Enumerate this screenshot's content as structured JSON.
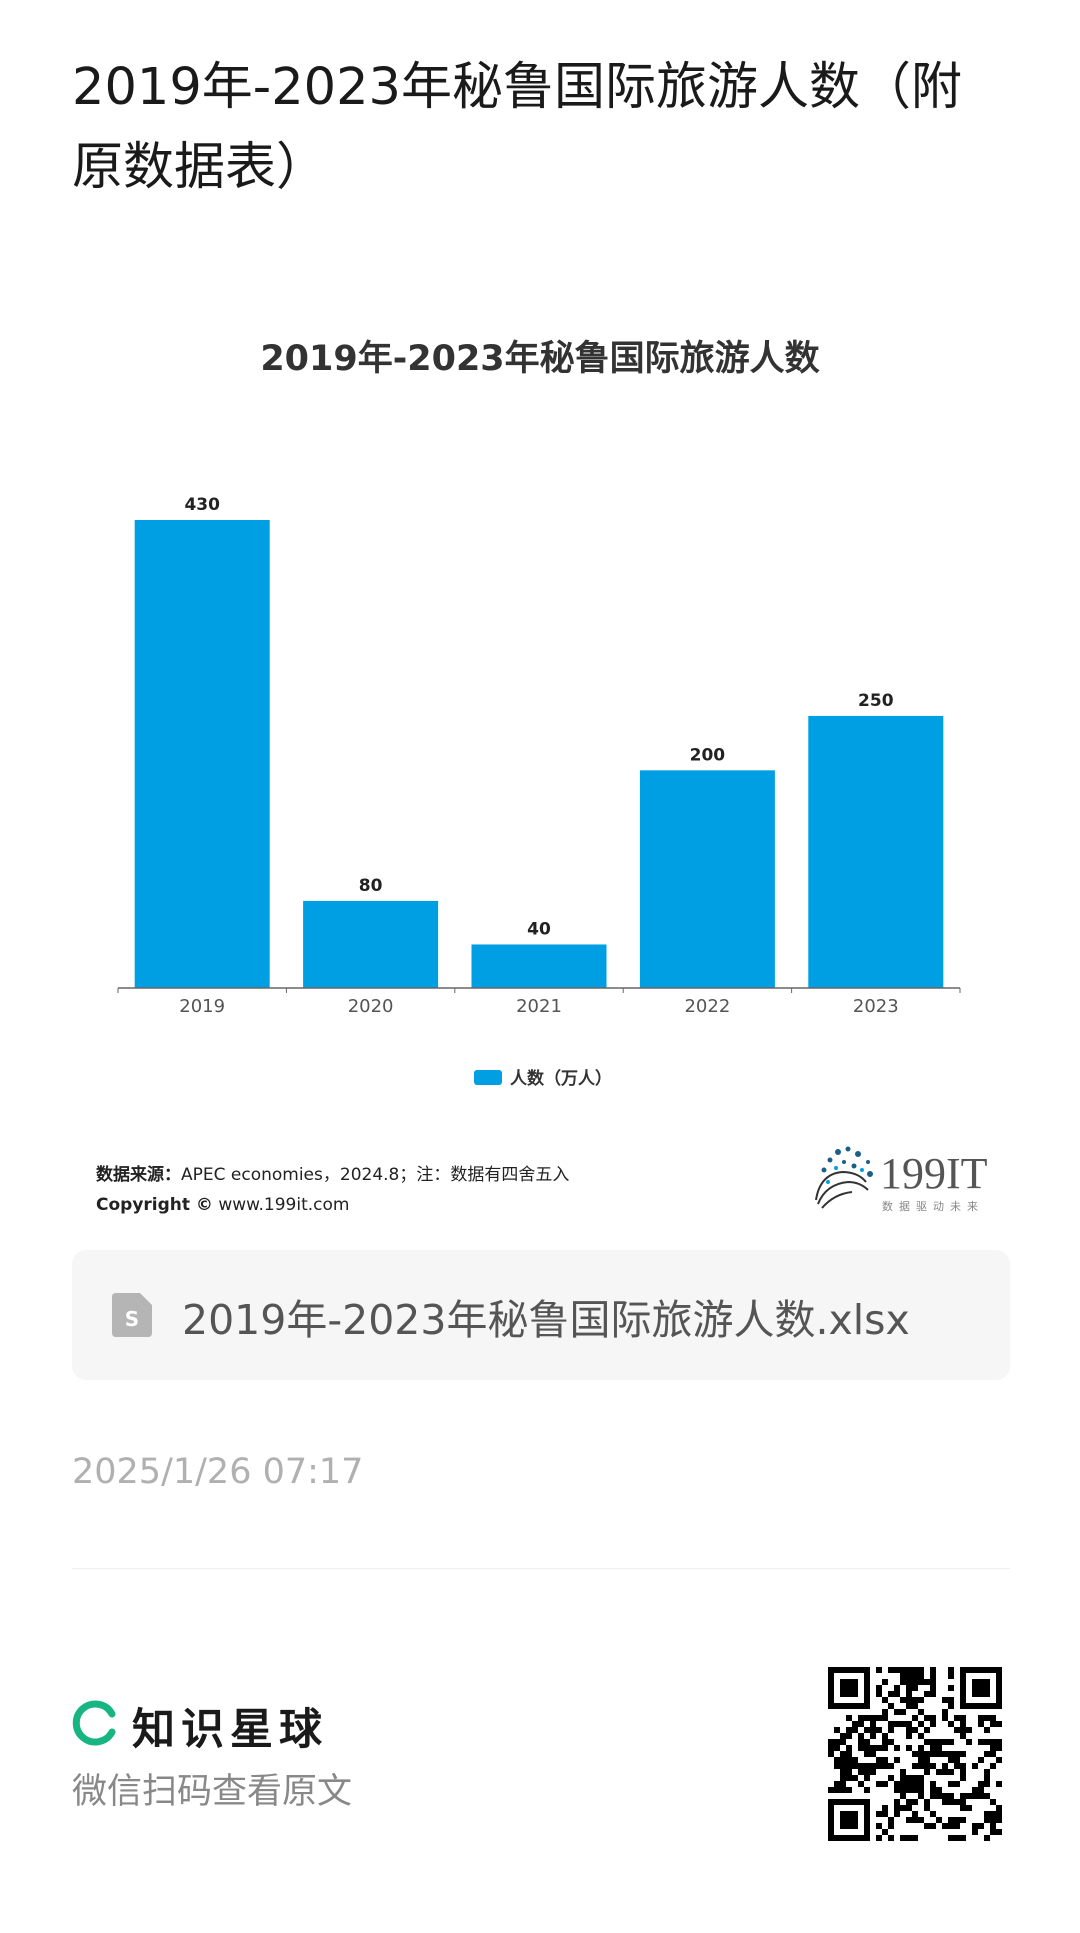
{
  "page": {
    "title": "2019年-2023年秘鲁国际旅游人数（附原数据表）"
  },
  "chart_data": {
    "type": "bar",
    "title": "2019年-2023年秘鲁国际旅游人数",
    "categories": [
      "2019",
      "2020",
      "2021",
      "2022",
      "2023"
    ],
    "series": [
      {
        "name": "人数（万人）",
        "values": [
          430,
          80,
          40,
          200,
          250
        ]
      }
    ],
    "data_labels": [
      "430",
      "80",
      "40",
      "200",
      "250"
    ],
    "xlabel": "",
    "ylabel": "",
    "ylim": [
      0,
      430
    ],
    "grid": false,
    "legend_position": "bottom",
    "bar_color": "#009fe3"
  },
  "chart_footer": {
    "source_label": "数据来源：",
    "source_text": "APEC economies，2024.8；注：数据有四舍五入",
    "copyright_label": "Copyright ©",
    "copyright_text": " www.199it.com",
    "brand_name": "199IT",
    "brand_tagline": "数据驱动未来"
  },
  "attachment": {
    "icon": "spreadsheet-file-icon",
    "file_name": "2019年-2023年秘鲁国际旅游人数.xlsx"
  },
  "meta": {
    "timestamp": "2025/1/26 07:17"
  },
  "footer": {
    "brand_name": "知识星球",
    "scan_hint": "微信扫码查看原文",
    "accent_color": "#17b581"
  }
}
